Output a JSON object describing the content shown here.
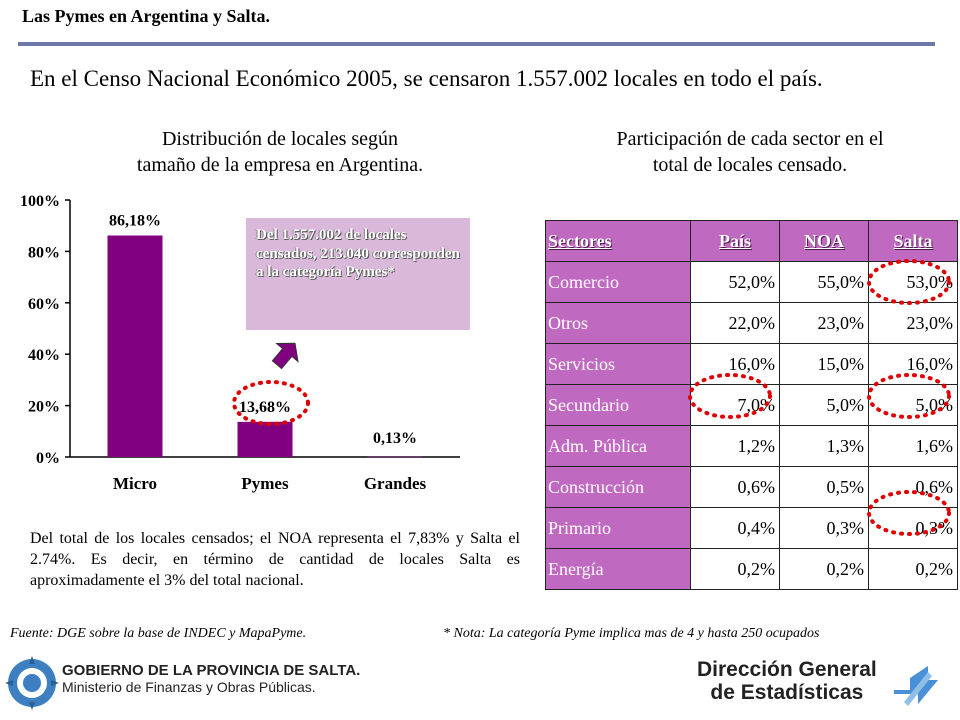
{
  "header": {
    "title": "Las Pymes en Argentina y Salta."
  },
  "census_text": "En el Censo Nacional Económico 2005, se censaron 1.557.002 locales en todo el país.",
  "chart_subtitle_line1": "Distribución de locales según",
  "chart_subtitle_line2": "tamaño de la empresa en Argentina.",
  "table_subtitle_line1": "Participación de cada sector en el",
  "table_subtitle_line2": "total de locales censado.",
  "callout": {
    "text": "Del 1.557.002 de locales censados, 213.040 corresponden a la categoría Pymes*"
  },
  "chart_data": {
    "type": "bar",
    "categories": [
      "Micro",
      "Pymes",
      "Grandes"
    ],
    "values": [
      86.18,
      13.68,
      0.13
    ],
    "data_labels": [
      "86,18%",
      "13,68%",
      "0,13%"
    ],
    "yticks": [
      "0%",
      "20%",
      "40%",
      "60%",
      "80%",
      "100%"
    ],
    "ylim": [
      0,
      100
    ],
    "bar_color": "#800080",
    "grid": false
  },
  "table": {
    "headers": [
      "Sectores",
      "País",
      "NOA",
      "Salta"
    ],
    "rows": [
      [
        "Comercio",
        "52,0%",
        "55,0%",
        "53,0%"
      ],
      [
        "Otros",
        "22,0%",
        "23,0%",
        "23,0%"
      ],
      [
        "Servicios",
        "16,0%",
        "15,0%",
        "16,0%"
      ],
      [
        "Secundario",
        "7,0%",
        "5,0%",
        "5,0%"
      ],
      [
        "Adm. Pública",
        "1,2%",
        "1,3%",
        "1,6%"
      ],
      [
        "Construcción",
        "0,6%",
        "0,5%",
        "0,6%"
      ],
      [
        "Primario",
        "0,4%",
        "0,3%",
        "0,3%"
      ],
      [
        "Energía",
        "0,2%",
        "0,2%",
        "0,2%"
      ]
    ]
  },
  "note_text": "Del total de los locales censados; el NOA representa el 7,83% y Salta el 2.74%. Es decir, en término de cantidad de locales Salta es aproximadamente el 3% del total nacional.",
  "footer": {
    "source": "Fuente: DGE  sobre la base de INDEC y MapaPyme.",
    "nota": "* Nota: La categoría Pyme implica mas de 4 y hasta 250 ocupados",
    "gov_line1": "GOBIERNO DE LA PROVINCIA DE SALTA.",
    "gov_line2": "Ministerio de Finanzas y Obras Públicas.",
    "dg_line1": "Dirección General",
    "dg_line2": "de Estadísticas"
  },
  "colors": {
    "rule": "#6f79a8",
    "table_purple": "#c069c0",
    "callout_bg": "#d9b8d9",
    "circle_red": "#e00000"
  }
}
